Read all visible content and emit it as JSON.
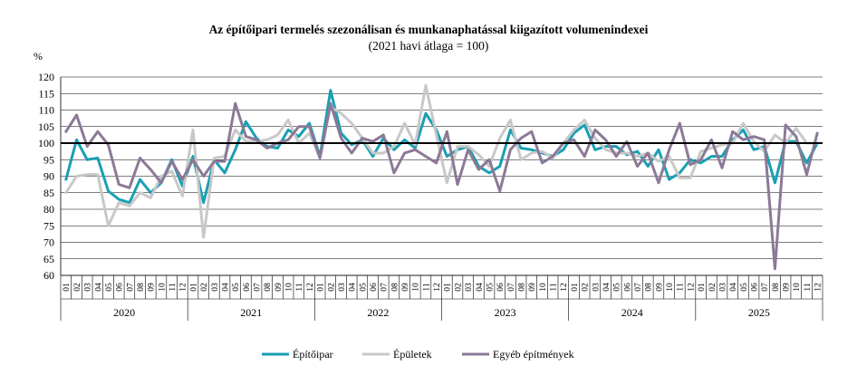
{
  "chart_data": {
    "type": "line",
    "title": "Az építőipari termelés szezonálisan és munkanaphatással kiigazított volumenindexei",
    "subtitle": "(2021 havi átlaga = 100)",
    "ylabel": "%",
    "ylim": [
      60,
      120
    ],
    "yticks": [
      60,
      65,
      70,
      75,
      80,
      85,
      90,
      95,
      100,
      105,
      110,
      115,
      120
    ],
    "reference_line": 100,
    "grid": "horizontal",
    "legend_position": "bottom",
    "years": [
      "2020",
      "2021",
      "2022",
      "2023",
      "2024",
      "2025"
    ],
    "month_labels": [
      "01",
      "02",
      "03",
      "04",
      "05",
      "06",
      "07",
      "08",
      "09",
      "10",
      "11",
      "12"
    ],
    "series": [
      {
        "name": "Építőipar",
        "color": "#1a9fb3",
        "values": [
          89,
          101,
          95,
          95.5,
          85.5,
          83,
          82,
          89,
          85,
          88,
          95,
          87,
          96,
          82,
          95,
          91,
          98,
          106.5,
          101.5,
          99,
          98.5,
          104,
          102,
          106,
          96,
          116,
          103,
          99.5,
          101,
          96,
          101.5,
          98,
          101,
          98.5,
          109,
          104,
          96,
          98,
          99,
          93,
          91,
          93,
          104,
          98.5,
          98,
          97,
          96,
          98,
          103,
          105.5,
          98,
          99,
          99,
          96.5,
          97.5,
          93,
          98,
          89,
          91,
          95,
          94,
          96,
          96,
          101,
          104,
          98,
          99,
          88,
          100.5,
          100.5,
          94,
          100
        ]
      },
      {
        "name": "Épületek",
        "color": "#c8c8c8",
        "values": [
          85,
          90,
          90.5,
          90.5,
          75,
          82,
          81,
          85,
          83.5,
          90,
          91.5,
          84,
          104,
          71.5,
          95.5,
          96,
          104,
          100.5,
          100.5,
          101,
          102.5,
          107,
          100,
          103,
          95.5,
          111,
          109,
          106,
          101.5,
          97,
          97,
          99,
          106,
          99.5,
          117.5,
          102.5,
          88,
          99,
          99,
          96.5,
          93,
          101.5,
          107,
          95,
          97,
          97.5,
          95.5,
          100,
          104,
          107,
          101.5,
          98,
          97,
          97,
          96,
          97,
          94.5,
          96,
          89.5,
          89.5,
          97.5,
          98.5,
          99.5,
          100,
          106,
          100.5,
          97.5,
          102.5,
          100,
          104.5,
          100,
          100
        ]
      },
      {
        "name": "Egyéb építmények",
        "color": "#8c7997",
        "values": [
          103.5,
          108.5,
          99,
          103.5,
          99.5,
          87.5,
          86.5,
          95.5,
          92,
          88,
          94.5,
          89,
          95,
          90,
          94.5,
          94.5,
          112,
          102,
          101,
          98.5,
          100,
          101,
          105,
          105,
          95.5,
          112,
          101.5,
          97,
          101.5,
          100.5,
          102.5,
          91,
          97,
          98,
          96,
          94,
          103.5,
          87.5,
          98,
          92,
          95,
          85.5,
          98,
          101.5,
          103.5,
          94,
          96,
          100,
          101,
          96,
          104,
          101,
          96,
          100.5,
          93,
          97,
          88,
          98,
          106,
          93.5,
          95,
          101,
          92.5,
          103.5,
          101,
          102,
          101,
          62,
          105.5,
          102,
          90.5,
          103
        ]
      }
    ]
  }
}
